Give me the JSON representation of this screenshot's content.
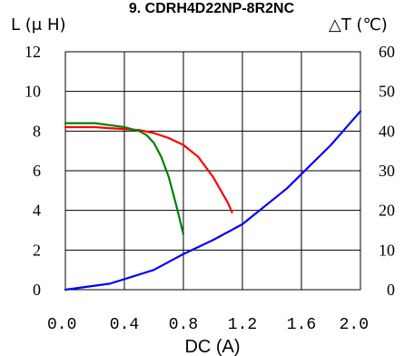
{
  "chart_data": {
    "type": "line",
    "title": "9. CDRH4D22NP-8R2NC",
    "xlabel": "DC (A)",
    "ylabel_left": "L (μ H)",
    "ylabel_right": "△T (℃)",
    "xlim": [
      0,
      2.0
    ],
    "ylim_left": [
      0,
      12
    ],
    "ylim_right": [
      0,
      60
    ],
    "x_ticks": [
      "0.0",
      "0.4",
      "0.8",
      "1.2",
      "1.6",
      "2.0"
    ],
    "y_left_ticks": [
      "0",
      "2",
      "4",
      "6",
      "8",
      "10",
      "12"
    ],
    "y_right_ticks": [
      "0",
      "10",
      "20",
      "30",
      "40",
      "50",
      "60"
    ],
    "grid": true,
    "series": [
      {
        "axis": "left",
        "color": "#ff0000",
        "x": [
          0.0,
          0.2,
          0.4,
          0.5,
          0.6,
          0.7,
          0.8,
          0.9,
          1.0,
          1.1,
          1.13
        ],
        "y": [
          8.2,
          8.2,
          8.1,
          8.05,
          7.9,
          7.65,
          7.3,
          6.7,
          5.7,
          4.4,
          3.9
        ]
      },
      {
        "axis": "left",
        "color": "#008000",
        "x": [
          0.0,
          0.1,
          0.2,
          0.3,
          0.4,
          0.45,
          0.5,
          0.55,
          0.6,
          0.65,
          0.7,
          0.75,
          0.8
        ],
        "y": [
          8.4,
          8.4,
          8.4,
          8.3,
          8.2,
          8.1,
          8.0,
          7.8,
          7.4,
          6.7,
          5.7,
          4.3,
          2.8
        ]
      },
      {
        "axis": "right",
        "color": "#0000ff",
        "x": [
          0.0,
          0.3,
          0.6,
          0.8,
          1.0,
          1.2,
          1.5,
          1.8,
          2.0
        ],
        "y": [
          0,
          1.5,
          5,
          9,
          12.5,
          16.5,
          25.5,
          36.5,
          45
        ]
      }
    ]
  }
}
